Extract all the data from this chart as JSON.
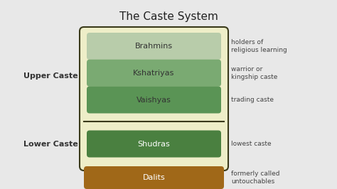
{
  "title": "The Caste System",
  "background_color": "#e8e8e8",
  "outer_box_color": "#eeeec8",
  "outer_box_border": "#3a3a1a",
  "castes": [
    {
      "label": "Brahmins",
      "color": "#b8ccaa",
      "text_color": "#333333",
      "desc": "holders of\nreligious learning"
    },
    {
      "label": "Kshatriyas",
      "color": "#7aaa72",
      "text_color": "#333333",
      "desc": "warrior or\nkingship caste"
    },
    {
      "label": "Vaishyas",
      "color": "#5a9455",
      "text_color": "#333333",
      "desc": "trading caste"
    },
    {
      "label": "Shudras",
      "color": "#4a8040",
      "text_color": "#ffffff",
      "desc": "lowest caste"
    }
  ],
  "dalits": {
    "label": "Dalits",
    "color": "#a06818",
    "text_color": "#ffffff",
    "desc": "formerly called\nuntouchables"
  },
  "upper_label": "Upper Caste",
  "lower_label": "Lower Caste",
  "title_fontsize": 11,
  "label_fontsize": 8,
  "bar_fontsize": 8,
  "desc_fontsize": 6.5
}
